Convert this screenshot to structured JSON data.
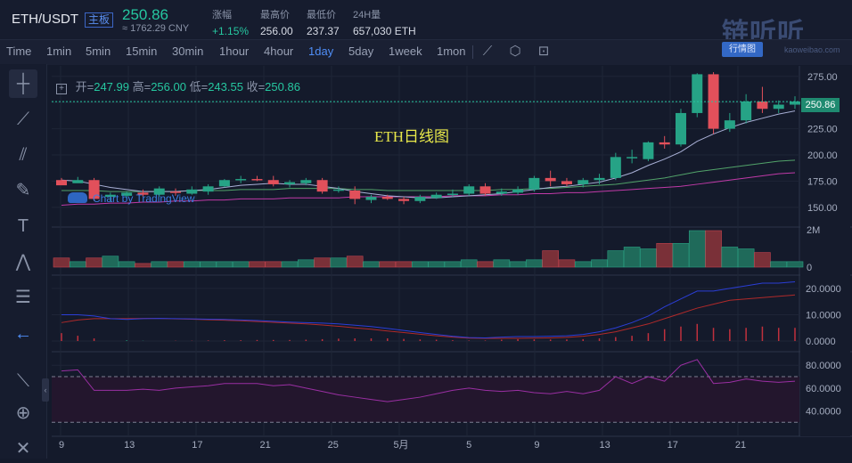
{
  "header": {
    "pair": "ETH/USDT",
    "tag": "主板",
    "price": "250.86",
    "price_cny": "≈ 1762.29 CNY",
    "stats": [
      {
        "label": "涨幅",
        "value": "+1.15%",
        "up": true
      },
      {
        "label": "最高价",
        "value": "256.00"
      },
      {
        "label": "最低价",
        "value": "237.37"
      },
      {
        "label": "24H量",
        "value": "657,030 ETH"
      }
    ],
    "brand": "链听听",
    "brand_sub": "kaoweibao.com",
    "brand_button": "行情图"
  },
  "timeframes": [
    "Time",
    "1min",
    "5min",
    "15min",
    "30min",
    "1hour",
    "4hour",
    "1day",
    "5day",
    "1week",
    "1mon"
  ],
  "active_timeframe": "1day",
  "toolbar_icons": [
    "chart-type-icon",
    "settings-icon",
    "screenshot-icon"
  ],
  "left_tools": [
    "crosshair-icon",
    "trend-line-icon",
    "pitchfork-icon",
    "brush-icon",
    "text-icon",
    "pattern-icon",
    "measure-icon",
    "back-arrow-icon",
    "ruler-icon",
    "zoom-icon",
    "remove-icon"
  ],
  "ohlc": {
    "open_label": "开=",
    "open": "247.99",
    "high_label": "高=",
    "high": "256.00",
    "low_label": "低=",
    "low": "243.55",
    "close_label": "收=",
    "close": "250.86"
  },
  "chart_data": {
    "type": "candlestick",
    "title": "ETH日线图",
    "watermark": "Chart by TradingView",
    "price_axis": {
      "ticks": [
        "275.00",
        "250.00",
        "225.00",
        "200.00",
        "175.00",
        "150.00"
      ],
      "range": [
        132,
        285
      ]
    },
    "current_price": "250.86",
    "x_axis": {
      "ticks": [
        "9",
        "13",
        "17",
        "21",
        "25",
        "5月",
        "5",
        "9",
        "13",
        "17",
        "21"
      ]
    },
    "candles": [
      [
        176,
        178,
        172,
        171
      ],
      [
        173,
        179,
        174,
        176
      ],
      [
        176,
        178,
        156,
        158
      ],
      [
        160,
        164,
        155,
        162
      ],
      [
        161,
        165,
        159,
        164
      ],
      [
        164,
        167,
        160,
        162
      ],
      [
        162,
        170,
        160,
        168
      ],
      [
        165,
        168,
        161,
        164
      ],
      [
        163,
        170,
        162,
        167
      ],
      [
        165,
        172,
        162,
        170
      ],
      [
        170,
        177,
        169,
        176
      ],
      [
        176,
        180,
        173,
        177
      ],
      [
        177,
        180,
        175,
        176
      ],
      [
        176,
        180,
        170,
        172
      ],
      [
        172,
        176,
        169,
        174
      ],
      [
        173,
        178,
        171,
        176
      ],
      [
        176,
        178,
        163,
        165
      ],
      [
        166,
        170,
        164,
        167
      ],
      [
        166,
        170,
        153,
        158
      ],
      [
        157,
        162,
        154,
        160
      ],
      [
        160,
        162,
        157,
        158
      ],
      [
        158,
        160,
        153,
        156
      ],
      [
        156,
        162,
        154,
        160
      ],
      [
        159,
        164,
        158,
        162
      ],
      [
        162,
        167,
        160,
        163
      ],
      [
        163,
        172,
        161,
        170
      ],
      [
        170,
        173,
        161,
        163
      ],
      [
        163,
        168,
        161,
        165
      ],
      [
        164,
        170,
        162,
        167
      ],
      [
        167,
        180,
        165,
        178
      ],
      [
        178,
        185,
        170,
        175
      ],
      [
        175,
        178,
        170,
        172
      ],
      [
        172,
        178,
        169,
        176
      ],
      [
        176,
        182,
        172,
        178
      ],
      [
        178,
        202,
        176,
        198
      ],
      [
        198,
        205,
        192,
        198
      ],
      [
        196,
        213,
        194,
        212
      ],
      [
        212,
        218,
        206,
        210
      ],
      [
        210,
        244,
        208,
        240
      ],
      [
        240,
        278,
        236,
        277
      ],
      [
        277,
        279,
        220,
        225
      ],
      [
        225,
        240,
        222,
        233
      ],
      [
        233,
        258,
        230,
        251
      ],
      [
        251,
        265,
        240,
        244
      ],
      [
        244,
        252,
        240,
        248
      ],
      [
        248,
        256,
        244,
        251
      ]
    ],
    "ma_slow": [
      166,
      166,
      166,
      165,
      165,
      165,
      165,
      165,
      166,
      166,
      166,
      167,
      167,
      167,
      168,
      168,
      168,
      168,
      167,
      167,
      166,
      166,
      166,
      166,
      166,
      166,
      166,
      167,
      167,
      168,
      168,
      169,
      170,
      171,
      172,
      174,
      176,
      178,
      181,
      184,
      186,
      188,
      190,
      192,
      194,
      195
    ],
    "ma_fast": [
      176,
      175,
      172,
      169,
      167,
      165,
      165,
      165,
      166,
      167,
      169,
      171,
      172,
      173,
      172,
      172,
      170,
      168,
      165,
      163,
      161,
      160,
      159,
      159,
      160,
      161,
      162,
      163,
      165,
      167,
      169,
      170,
      172,
      174,
      178,
      183,
      190,
      196,
      203,
      213,
      220,
      226,
      231,
      235,
      239,
      242
    ],
    "ma_long": [
      152,
      153,
      153,
      154,
      154,
      155,
      155,
      156,
      156,
      157,
      157,
      158,
      158,
      158,
      159,
      159,
      159,
      159,
      160,
      160,
      160,
      160,
      160,
      160,
      161,
      161,
      161,
      162,
      162,
      163,
      163,
      164,
      164,
      165,
      166,
      167,
      168,
      169,
      170,
      172,
      174,
      176,
      178,
      180,
      182,
      183
    ],
    "volume": {
      "axis_ticks": [
        "2M",
        "0"
      ],
      "max": 2.0,
      "values": [
        0.5,
        0.3,
        0.5,
        0.6,
        0.3,
        0.2,
        0.3,
        0.3,
        0.3,
        0.3,
        0.3,
        0.3,
        0.3,
        0.3,
        0.3,
        0.4,
        0.5,
        0.5,
        0.6,
        0.3,
        0.3,
        0.3,
        0.3,
        0.3,
        0.3,
        0.4,
        0.3,
        0.4,
        0.3,
        0.4,
        0.9,
        0.4,
        0.3,
        0.4,
        0.9,
        1.1,
        1.0,
        1.3,
        1.3,
        2.0,
        2.0,
        1.1,
        1.0,
        0.8,
        0.3,
        0.3
      ]
    },
    "macd": {
      "axis_ticks": [
        "20.0000",
        "10.0000",
        "0.0000"
      ],
      "range": [
        0,
        22
      ],
      "dif": [
        10,
        10,
        9.5,
        8.5,
        8.2,
        8.5,
        8.6,
        8.5,
        8.4,
        8.3,
        8.2,
        8,
        7.8,
        7.5,
        7.2,
        7,
        6.8,
        6.5,
        6,
        5.5,
        4.8,
        4,
        3.2,
        2.5,
        1.8,
        1.3,
        1.2,
        1.5,
        1.7,
        1.7,
        1.8,
        2,
        2.5,
        3.5,
        5,
        7,
        9.5,
        13,
        16,
        19,
        19,
        20,
        21,
        22,
        22,
        22.5
      ],
      "dea": [
        7,
        8,
        8.5,
        8.5,
        8.5,
        8.6,
        8.6,
        8.4,
        8.3,
        8.1,
        7.9,
        7.7,
        7.4,
        7.1,
        6.8,
        6.5,
        6.1,
        5.6,
        5,
        4.5,
        3.8,
        3.2,
        2.6,
        2,
        1.5,
        1.1,
        1,
        1,
        1,
        1.1,
        1.2,
        1.4,
        1.8,
        2.5,
        3.5,
        5,
        6.5,
        8.5,
        10.5,
        12.5,
        14,
        15.5,
        16,
        16.5,
        17,
        17.5
      ]
    },
    "rsi": {
      "axis_ticks": [
        "80.0000",
        "60.0000",
        "40.0000"
      ],
      "range": [
        20,
        88
      ],
      "bands": [
        70,
        30
      ],
      "values": [
        75,
        76,
        58,
        58,
        58,
        59,
        58,
        60,
        61,
        62,
        64,
        64,
        64,
        62,
        63,
        60,
        57,
        54,
        52,
        50,
        48,
        50,
        52,
        55,
        58,
        60,
        58,
        57,
        58,
        56,
        55,
        57,
        55,
        58,
        70,
        64,
        70,
        66,
        80,
        85,
        64,
        65,
        68,
        66,
        65,
        66
      ]
    }
  }
}
